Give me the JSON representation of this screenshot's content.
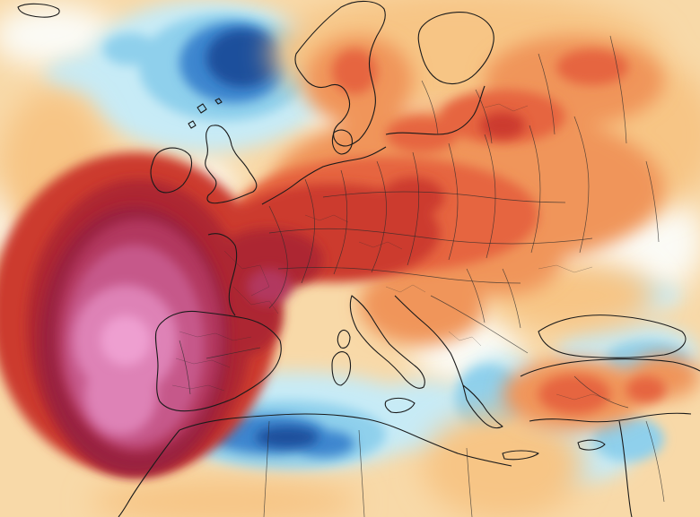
{
  "map": {
    "colors": {
      "ocean_warm_pale": "#f8d9a8",
      "deep_blue": "#1a4f9c",
      "mid_blue": "#3d86cf",
      "light_blue": "#8fd0ec",
      "cyan_pale": "#c7ebf6",
      "pale_white": "#fbfbf6",
      "pale_yellow": "#f8e9b4",
      "light_orange": "#f7c585",
      "orange": "#f0955a",
      "red_orange": "#e6653f",
      "red": "#cc3a2f",
      "dark_red": "#ad2733",
      "deep_red": "#9a2341",
      "crimson_purple": "#b2385f",
      "magenta": "#c6588a",
      "pink": "#de82b6",
      "light_pink": "#ee9fd0",
      "coastline": "#1a1a1a",
      "border": "#2b2b2b"
    }
  }
}
